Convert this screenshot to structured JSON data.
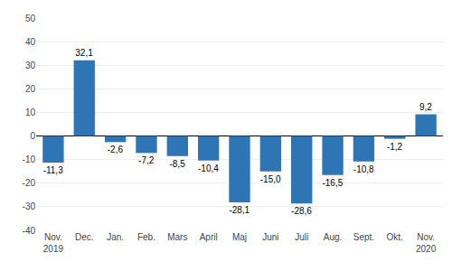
{
  "chart_data": {
    "type": "bar",
    "categories": [
      "Nov.\n2019",
      "Dec.",
      "Jan.",
      "Feb.",
      "Mars",
      "April",
      "Maj",
      "Juni",
      "Juli",
      "Aug.",
      "Sept.",
      "Okt.",
      "Nov.\n2020"
    ],
    "values": [
      -11.3,
      32.1,
      -2.6,
      -7.2,
      -8.5,
      -10.4,
      -28.1,
      -15.0,
      -28.6,
      -16.5,
      -10.8,
      -1.2,
      9.2
    ],
    "value_labels": [
      "-11,3",
      "32,1",
      "-2,6",
      "-7,2",
      "-8,5",
      "-10,4",
      "-28,1",
      "-15,0",
      "-28,6",
      "-16,5",
      "-10,8",
      "-1,2",
      "9,2"
    ],
    "data_labels": true,
    "color": "#2E75B6",
    "ylim": [
      -40,
      50
    ],
    "yticks": [
      -40,
      -30,
      -20,
      -10,
      0,
      10,
      20,
      30,
      40,
      50
    ],
    "grid": true
  }
}
